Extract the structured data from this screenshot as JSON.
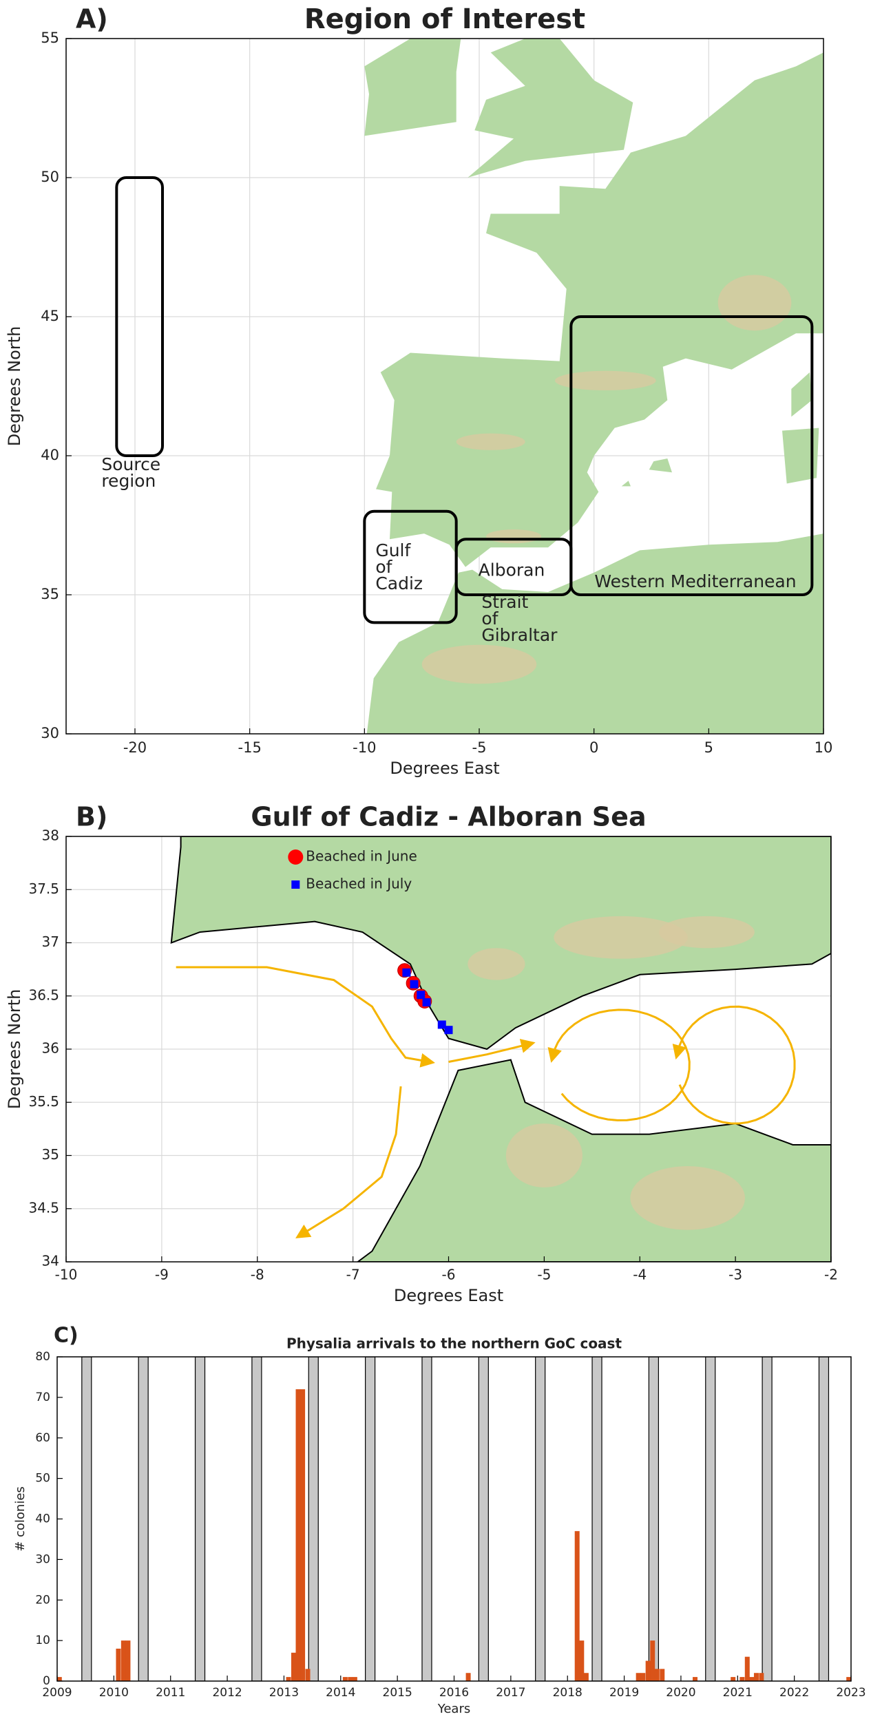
{
  "chart_data": [
    {
      "type": "map",
      "panel": "A)",
      "title": "Region of Interest",
      "xlabel": "Degrees East",
      "ylabel": "Degrees North",
      "xlim": [
        -23,
        10
      ],
      "ylim": [
        30,
        55
      ],
      "xticks": [
        -20,
        -15,
        -10,
        -5,
        0,
        5,
        10
      ],
      "yticks": [
        30,
        35,
        40,
        45,
        50,
        55
      ],
      "grid": true,
      "regions": [
        {
          "label": [
            "Source",
            "region"
          ],
          "xlim": [
            -20.8,
            -18.8
          ],
          "ylim": [
            40,
            50
          ]
        },
        {
          "label": [
            "Gulf",
            "of",
            "Cadiz"
          ],
          "xlim": [
            -10,
            -6
          ],
          "ylim": [
            34,
            38
          ]
        },
        {
          "label": [
            "Alboran"
          ],
          "xlim": [
            -6,
            -1
          ],
          "ylim": [
            35,
            37
          ]
        },
        {
          "label": [
            "Western Mediterranean"
          ],
          "xlim": [
            -1,
            9.5
          ],
          "ylim": [
            35,
            45
          ]
        }
      ],
      "annotations": [
        {
          "text": [
            "Strait",
            "of",
            "Gibraltar"
          ]
        }
      ]
    },
    {
      "type": "map",
      "panel": "B)",
      "title": "Gulf of Cadiz - Alboran Sea",
      "xlabel": "Degrees East",
      "ylabel": "Degrees North",
      "xlim": [
        -10,
        -2
      ],
      "ylim": [
        34,
        38
      ],
      "xticks": [
        -10,
        -9,
        -8,
        -7,
        -6,
        -5,
        -4,
        -3,
        -2
      ],
      "yticks": [
        34,
        34.5,
        35,
        35.5,
        36,
        36.5,
        37,
        37.5,
        38
      ],
      "grid": true,
      "legend": "upper center",
      "series": [
        {
          "name": "Beached in June",
          "color": "#ff0000",
          "marker": "circle",
          "x": [
            -6.46,
            -6.37,
            -6.29,
            -6.25
          ],
          "values": [
            36.74,
            36.62,
            36.5,
            36.45
          ]
        },
        {
          "name": "Beached in July",
          "color": "#0000ff",
          "marker": "square",
          "x": [
            -6.44,
            -6.36,
            -6.29,
            -6.23,
            -6.07,
            -6.0
          ],
          "values": [
            36.72,
            36.61,
            36.51,
            36.44,
            36.23,
            36.18
          ]
        }
      ]
    },
    {
      "type": "bar",
      "panel": "C)",
      "title": "Physalia arrivals to the northern GoC coast",
      "xlabel": "Years",
      "ylabel": "# colonies",
      "xlim": [
        2009,
        2023
      ],
      "ylim": [
        0,
        80
      ],
      "xticks": [
        2009,
        2010,
        2011,
        2012,
        2013,
        2014,
        2015,
        2016,
        2017,
        2018,
        2019,
        2020,
        2021,
        2022,
        2023
      ],
      "yticks": [
        0,
        10,
        20,
        30,
        40,
        50,
        60,
        70,
        80
      ],
      "grid": false,
      "series": [
        {
          "color": "#c8c8c8",
          "x": [
            2009.52,
            2010.52,
            2011.52,
            2012.52,
            2013.52,
            2014.52,
            2015.52,
            2016.52,
            2017.52,
            2018.52,
            2019.52,
            2020.52,
            2021.52,
            2022.52
          ],
          "values": [
            80,
            80,
            80,
            80,
            80,
            80,
            80,
            80,
            80,
            80,
            80,
            80,
            80,
            80
          ]
        },
        {
          "color": "#d95319",
          "x": [
            2009.04,
            2010.08,
            2010.17,
            2010.25,
            2013.08,
            2013.17,
            2013.25,
            2013.33,
            2013.42,
            2014.08,
            2014.17,
            2014.25,
            2016.25,
            2018.17,
            2018.25,
            2018.33,
            2019.25,
            2019.33,
            2019.42,
            2019.5,
            2019.58,
            2019.67,
            2020.25,
            2020.92,
            2021.08,
            2021.17,
            2021.25,
            2021.33,
            2021.42,
            2022.96
          ],
          "values": [
            1,
            8,
            10,
            10,
            1,
            7,
            72,
            72,
            3,
            1,
            1,
            1,
            2,
            37,
            10,
            2,
            2,
            2,
            5,
            10,
            3,
            3,
            1,
            1,
            1,
            6,
            1,
            2,
            2,
            1
          ]
        }
      ]
    }
  ]
}
